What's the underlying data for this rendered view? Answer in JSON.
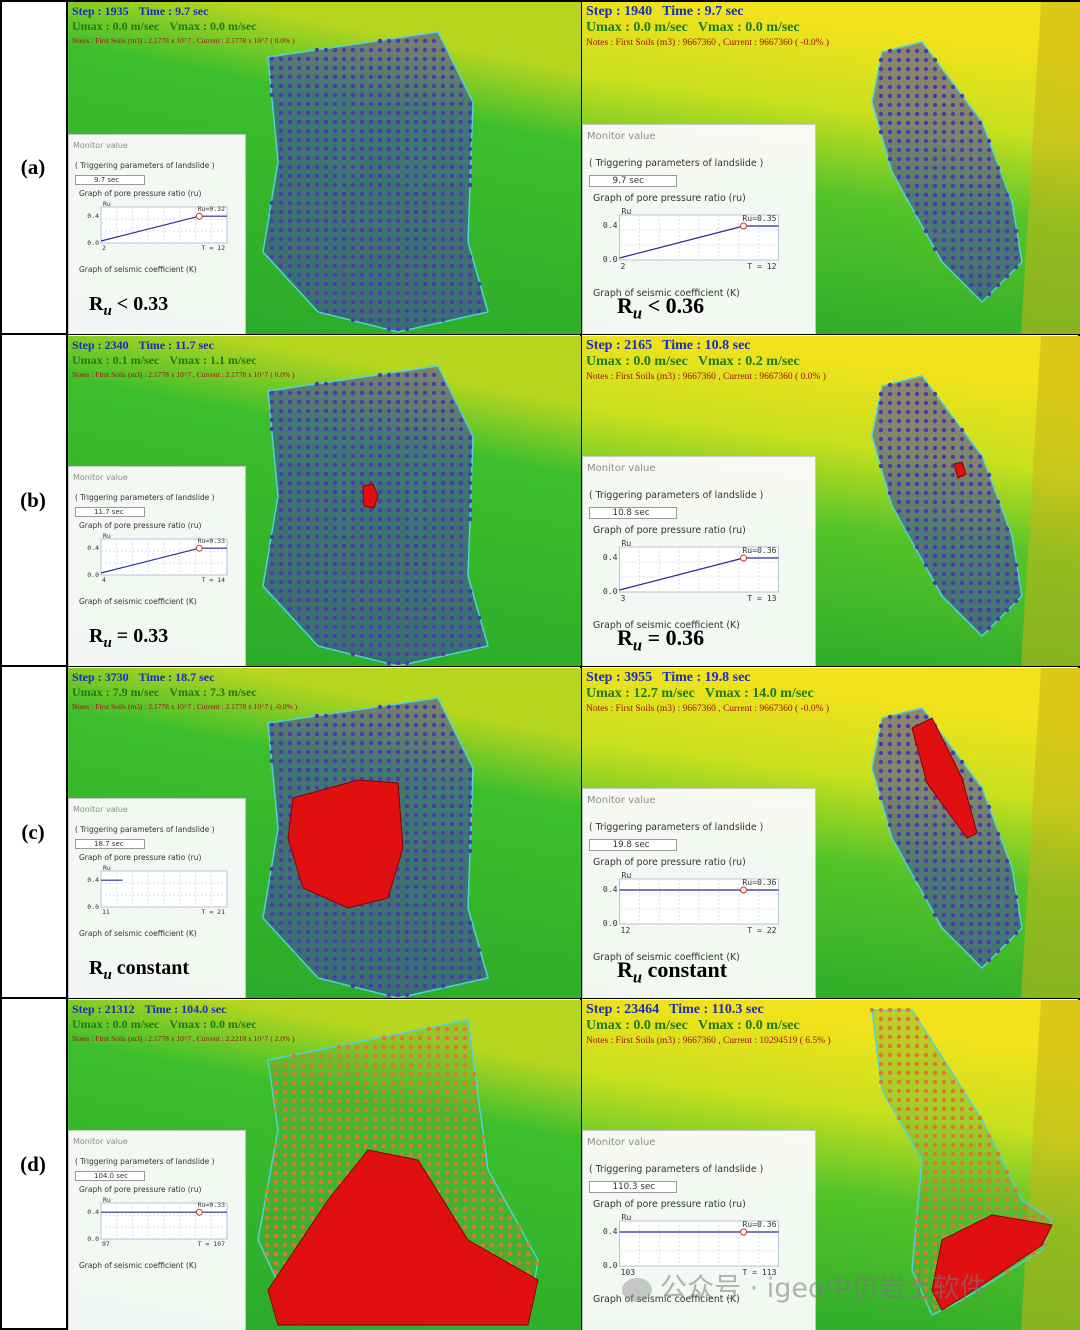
{
  "rows": [
    {
      "label": "(a)",
      "panels": [
        {
          "step": "Step : 1935",
          "time": "Time : 9.7 sec",
          "umax": "Umax : 0.0 m/sec",
          "vmax": "Vmax : 0.0 m/sec",
          "notes": "Notes : First Soils (m3) : 2.1778 x 10^7 , Current : 2.1778 x 10^7 ( 0.0% )",
          "monitor_title": "Monitor value",
          "trigger": "( Triggering parameters of landslide )",
          "time_box": "9.7 sec",
          "graph_title": "Graph of pore pressure ratio (ru)",
          "ru_axis": "Ru",
          "y_top": "0.4",
          "y_bottom": "0.0",
          "x_start": "2",
          "t_label": "T = 12",
          "ru_value": "Ru=0.32",
          "ru_state": "rising",
          "seismic": "Graph of seismic coefficient (K)",
          "expr_ru": "R",
          "expr_sub": "u",
          "expr_rest": " < 0.33",
          "failed": "none"
        },
        {
          "step": "Step : 1940",
          "time": "Time : 9.7 sec",
          "umax": "Umax : 0.0 m/sec",
          "vmax": "Vmax : 0.0 m/sec",
          "notes": "Notes : First Soils (m3) : 9667360 , Current : 9667360 ( -0.0% )",
          "monitor_title": "Monitor value",
          "trigger": "( Triggering parameters of landslide )",
          "time_box": "9.7 sec",
          "graph_title": "Graph of pore pressure ratio (ru)",
          "ru_axis": "Ru",
          "y_top": "0.4",
          "y_bottom": "0.0",
          "x_start": "2",
          "t_label": "T = 12",
          "ru_value": "Ru=0.35",
          "ru_state": "rising",
          "seismic": "Graph of seismic coefficient (K)",
          "expr_ru": "R",
          "expr_sub": "u",
          "expr_rest": " < 0.36",
          "failed": "none"
        }
      ]
    },
    {
      "label": "(b)",
      "panels": [
        {
          "step": "Step : 2340",
          "time": "Time : 11.7 sec",
          "umax": "Umax : 0.1 m/sec",
          "vmax": "Vmax : 1.1 m/sec",
          "notes": "Notes : First Soils (m3) : 2.1778 x 10^7 , Current : 2.1778 x 10^7 ( 0.0% )",
          "monitor_title": "Monitor value",
          "trigger": "( Triggering parameters of landslide )",
          "time_box": "11.7 sec",
          "graph_title": "Graph of pore pressure ratio (ru)",
          "ru_axis": "Ru",
          "y_top": "0.4",
          "y_bottom": "0.0",
          "x_start": "4",
          "t_label": "T = 14",
          "ru_value": "Ru=0.33",
          "ru_state": "rising",
          "seismic": "Graph of seismic coefficient (K)",
          "expr_ru": "R",
          "expr_sub": "u",
          "expr_rest": " = 0.33",
          "failed": "small"
        },
        {
          "step": "Step : 2165",
          "time": "Time : 10.8 sec",
          "umax": "Umax : 0.0 m/sec",
          "vmax": "Vmax : 0.2 m/sec",
          "notes": "Notes : First Soils (m3) : 9667360 , Current : 9667360 ( 0.0% )",
          "monitor_title": "Monitor value",
          "trigger": "( Triggering parameters of landslide )",
          "time_box": "10.8 sec",
          "graph_title": "Graph of pore pressure ratio (ru)",
          "ru_axis": "Ru",
          "y_top": "0.4",
          "y_bottom": "0.0",
          "x_start": "3",
          "t_label": "T = 13",
          "ru_value": "Ru=0.36",
          "ru_state": "rising",
          "seismic": "Graph of seismic coefficient (K)",
          "expr_ru": "R",
          "expr_sub": "u",
          "expr_rest": " = 0.36",
          "failed": "small"
        }
      ]
    },
    {
      "label": "(c)",
      "panels": [
        {
          "step": "Step : 3730",
          "time": "Time : 18.7 sec",
          "umax": "Umax : 7.9 m/sec",
          "vmax": "Vmax : 7.3 m/sec",
          "notes": "Notes : First Soils (m3) : 2.1778 x 10^7 , Current : 2.1778 x 10^7 ( -0.0% )",
          "monitor_title": "Monitor value",
          "trigger": "( Triggering parameters of landslide )",
          "time_box": "18.7 sec",
          "graph_title": "Graph of pore pressure ratio (ru)",
          "ru_axis": "Ru",
          "y_top": "0.4",
          "y_bottom": "0.0",
          "x_start": "11",
          "t_label": "T = 21",
          "ru_value": "",
          "ru_state": "flat-short",
          "seismic": "Graph of seismic coefficient (K)",
          "expr_ru": "R",
          "expr_sub": "u",
          "expr_rest": " constant",
          "failed": "medium"
        },
        {
          "step": "Step : 3955",
          "time": "Time : 19.8 sec",
          "umax": "Umax : 12.7 m/sec",
          "vmax": "Vmax : 14.0 m/sec",
          "notes": "Notes : First Soils (m3) : 9667360 , Current : 9667360 ( -0.0% )",
          "monitor_title": "Monitor value",
          "trigger": "( Triggering parameters of landslide )",
          "time_box": "19.8 sec",
          "graph_title": "Graph of pore pressure ratio (ru)",
          "ru_axis": "Ru",
          "y_top": "0.4",
          "y_bottom": "0.0",
          "x_start": "12",
          "t_label": "T = 22",
          "ru_value": "Ru=0.36",
          "ru_state": "flat",
          "seismic": "Graph of seismic coefficient (K)",
          "expr_ru": "R",
          "expr_sub": "u",
          "expr_rest": " constant",
          "failed": "medium"
        }
      ]
    },
    {
      "label": "(d)",
      "panels": [
        {
          "step": "Step : 21312",
          "time": "Time : 104.0 sec",
          "umax": "Umax : 0.0 m/sec",
          "vmax": "Vmax : 0.0 m/sec",
          "notes": "Notes : First Soils (m3) : 2.1778 x 10^7 , Current : 2.2218 x 10^7 ( 2.0% )",
          "monitor_title": "Monitor value",
          "trigger": "( Triggering parameters of landslide )",
          "time_box": "104.0 sec",
          "graph_title": "Graph of pore pressure ratio (ru)",
          "ru_axis": "Ru",
          "y_top": "0.4",
          "y_bottom": "0.0",
          "x_start": "97",
          "t_label": "T = 107",
          "ru_value": "Ru=0.33",
          "ru_state": "flat",
          "seismic": "Graph of seismic coefficient (K)",
          "expr_ru": "",
          "expr_sub": "",
          "expr_rest": "",
          "failed": "large"
        },
        {
          "step": "Step : 23464",
          "time": "Time : 110.3 sec",
          "umax": "Umax : 0.0 m/sec",
          "vmax": "Vmax : 0.0 m/sec",
          "notes": "Notes : First Soils (m3) : 9667360 , Current : 10294519 ( 6.5% )",
          "monitor_title": "Monitor value",
          "trigger": "( Triggering parameters of landslide )",
          "time_box": "110.3 sec",
          "graph_title": "Graph of pore pressure ratio (ru)",
          "ru_axis": "Ru",
          "y_top": "0.4",
          "y_bottom": "0.0",
          "x_start": "103",
          "t_label": "T = 113",
          "ru_value": "Ru=0.36",
          "ru_state": "flat",
          "seismic": "Graph of seismic coefficient (K)",
          "expr_ru": "",
          "expr_sub": "",
          "expr_rest": "",
          "failed": "large"
        }
      ]
    }
  ],
  "watermark": "公众号 · igeo中仿岩土软件",
  "colors": {
    "terrain_green": "#2fb52a",
    "terrain_yellow": "#e8e020",
    "particle_blue": "#4a3bb0",
    "failed_red": "#e01010",
    "boundary_cyan": "#4fd3d8"
  }
}
